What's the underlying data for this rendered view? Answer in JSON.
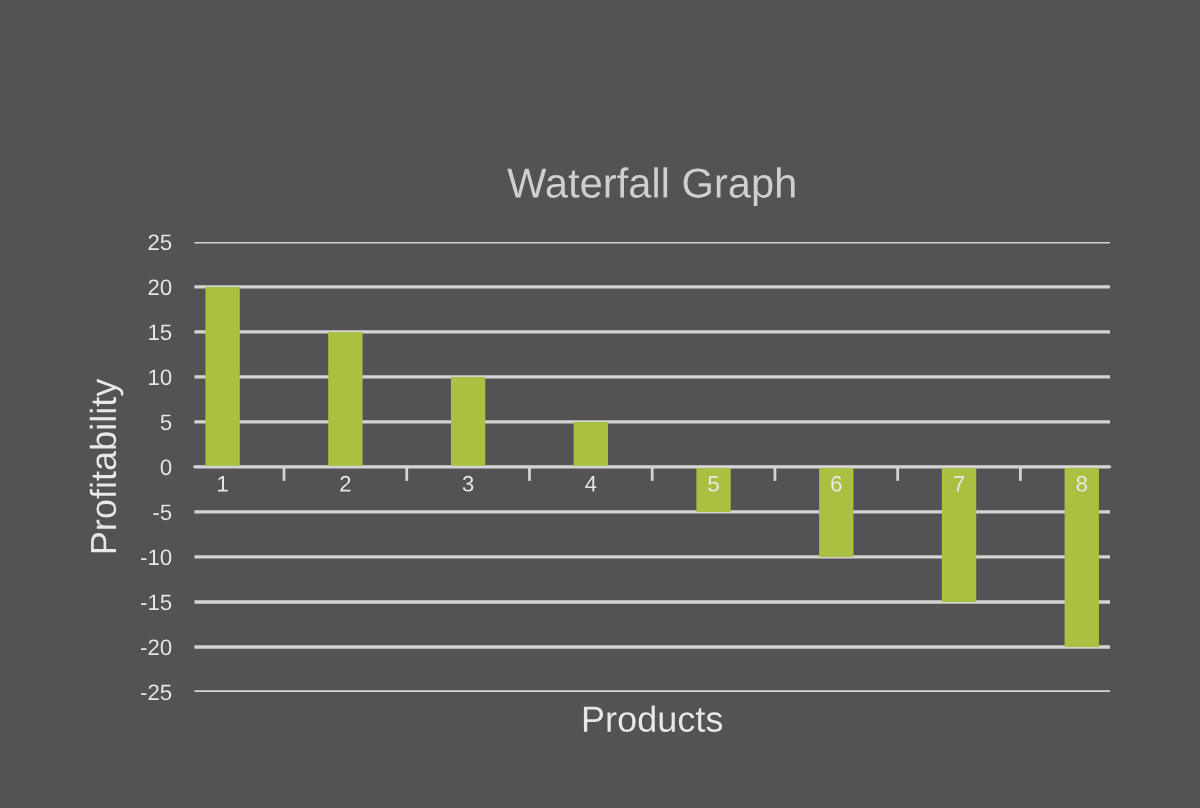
{
  "chart_data": {
    "type": "bar",
    "title": "Waterfall Graph",
    "xlabel": "Products",
    "ylabel": "Profitability",
    "categories": [
      "1",
      "2",
      "3",
      "4",
      "5",
      "6",
      "7",
      "8"
    ],
    "values": [
      20,
      15,
      10,
      5,
      -5,
      -10,
      -15,
      -20
    ],
    "color": "#a9c040",
    "ylim": [
      -25,
      25
    ],
    "yticks": [
      -25,
      -20,
      -15,
      -10,
      -5,
      0,
      5,
      10,
      15,
      20,
      25
    ],
    "grid": "y"
  }
}
